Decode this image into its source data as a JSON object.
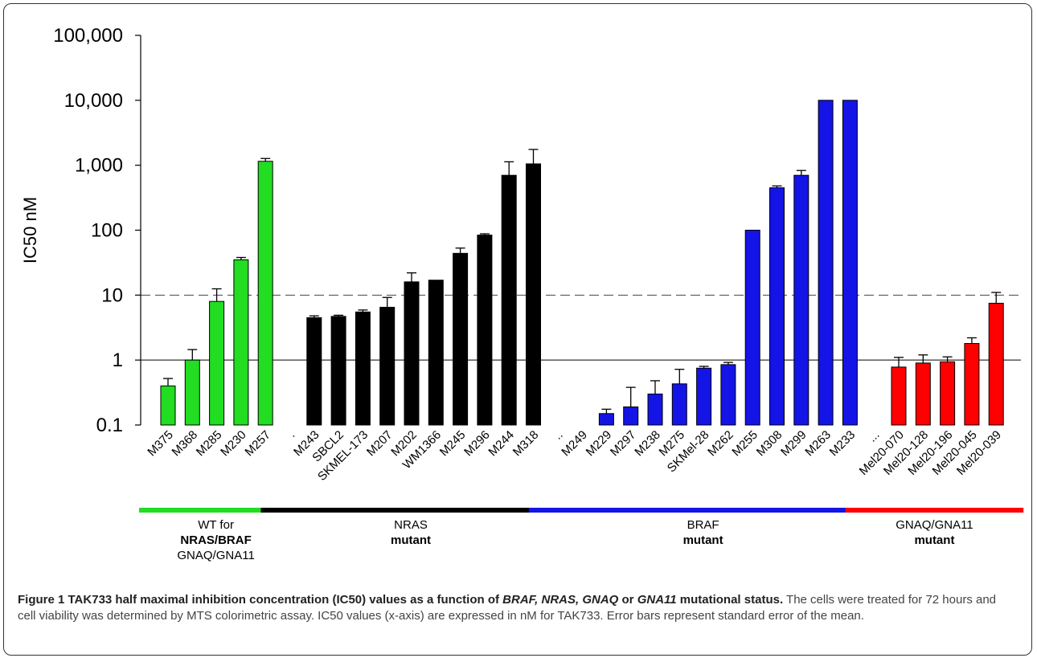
{
  "chart_data": {
    "type": "bar",
    "ylabel": "IC50 nM",
    "yscale": "log",
    "ylim": [
      0.1,
      100000
    ],
    "yticks": [
      "0.1",
      "1",
      "10",
      "100",
      "1,000",
      "10,000",
      "100,000"
    ],
    "ytick_values": [
      0.1,
      1,
      10,
      100,
      1000,
      10000,
      100000
    ],
    "reference_lines": [
      {
        "value": 1,
        "style": "solid"
      },
      {
        "value": 10,
        "style": "dashed"
      }
    ],
    "groups": [
      {
        "color": "#22dd22",
        "label_lines": [
          "WT for",
          "NRAS/BRAF",
          "GNAQ/GNA11"
        ],
        "label_bold": [
          false,
          true,
          false
        ],
        "categories": [
          "M375",
          "M368",
          "M285",
          "M230",
          "M257"
        ],
        "values": [
          0.4,
          1.0,
          8.0,
          35,
          1150
        ],
        "errors": [
          0.52,
          1.45,
          12.5,
          38,
          1270
        ]
      },
      {
        "color": "#000000",
        "label_lines": [
          "NRAS",
          "mutant"
        ],
        "label_bold": [
          false,
          true
        ],
        "categories": [
          ".",
          "M243",
          "SBCL2",
          "SKMEL-173",
          "M207",
          "M202",
          "WM1366",
          "M245",
          "M296",
          "M244",
          "M318"
        ],
        "values": [
          null,
          4.5,
          4.7,
          5.5,
          6.5,
          16,
          17,
          44,
          84,
          700,
          1050
        ],
        "errors": [
          null,
          4.8,
          4.9,
          5.9,
          9.2,
          22,
          null,
          53,
          88,
          1130,
          1750
        ]
      },
      {
        "color": "#1414e6",
        "label_lines": [
          "BRAF",
          "mutant"
        ],
        "label_bold": [
          false,
          true
        ],
        "categories": [
          "..",
          "M249",
          "M229",
          "M297",
          "M238",
          "M275",
          "SKMel-28",
          "M262",
          "M255",
          "M308",
          "M299",
          "M263",
          "M233"
        ],
        "values": [
          null,
          null,
          0.15,
          0.19,
          0.3,
          0.43,
          0.75,
          0.85,
          100,
          450,
          700,
          10000,
          10000
        ],
        "errors": [
          null,
          null,
          0.175,
          0.38,
          0.48,
          0.72,
          0.8,
          0.92,
          null,
          480,
          830,
          null,
          null
        ]
      },
      {
        "color": "#ff0000",
        "label_lines": [
          "GNAQ/GNA11",
          "mutant"
        ],
        "label_bold": [
          false,
          true
        ],
        "categories": [
          "...",
          "Mel20-070",
          "Mel20-128",
          "Mel20-196",
          "Mel20-045",
          "Mel20-039"
        ],
        "values": [
          null,
          0.78,
          0.9,
          0.94,
          1.8,
          7.5
        ],
        "errors": [
          null,
          1.1,
          1.2,
          1.12,
          2.2,
          11
        ]
      }
    ]
  },
  "caption": {
    "bold_1": "Figure 1 TAK733 half maximal inhibition concentration (IC50) values as a function of ",
    "italic_1": "BRAF, NRAS, GNAQ",
    "bold_2": " or ",
    "italic_2": "GNA11",
    "bold_3": " mutational status.",
    "body": "The cells were treated for 72 hours and cell viability was determined by MTS colorimetric assay. IC50 values (x-axis) are expressed in nM for TAK733. Error bars represent standard error of the mean."
  }
}
